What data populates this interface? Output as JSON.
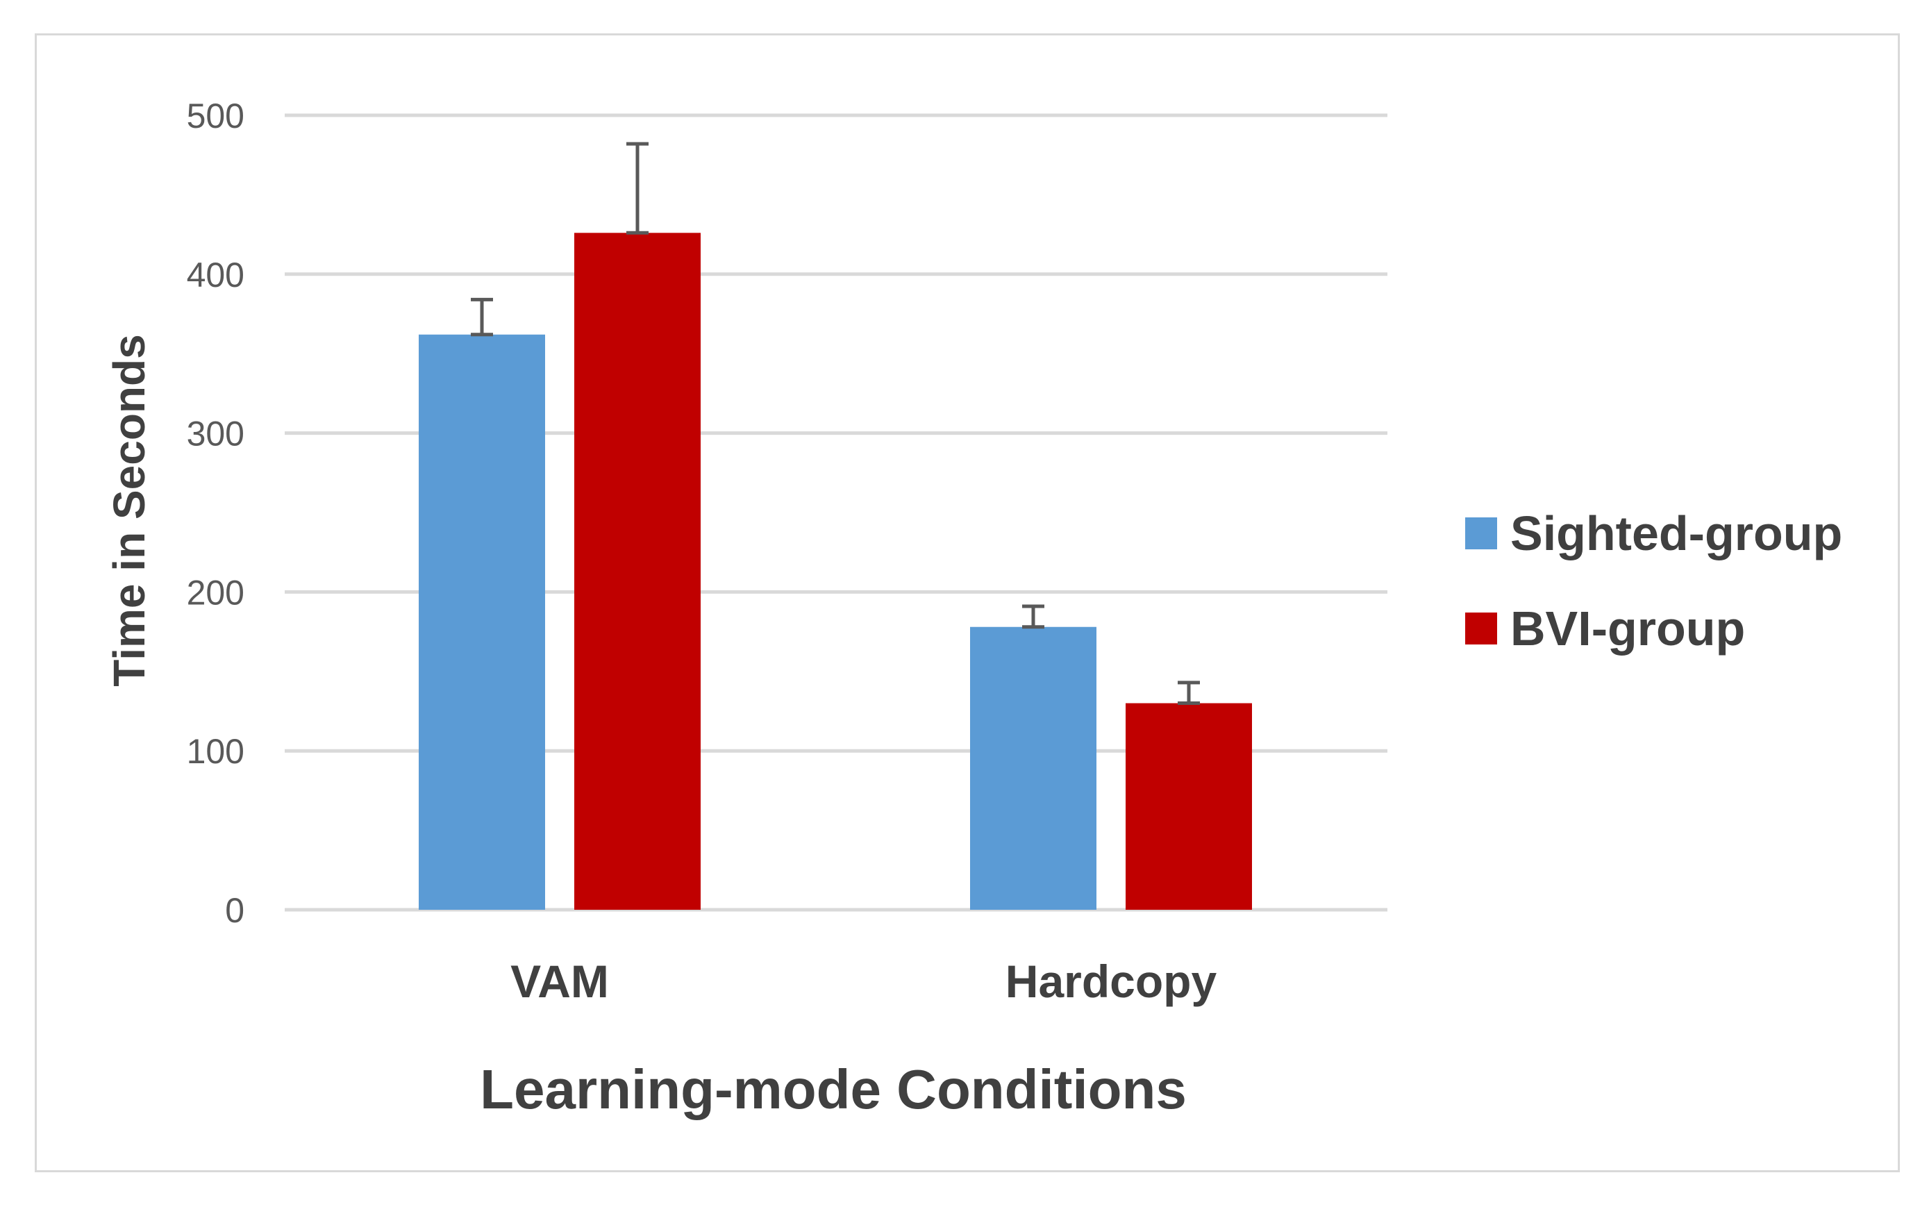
{
  "chart_data": {
    "type": "bar",
    "categories": [
      "VAM",
      "Hardcopy"
    ],
    "series": [
      {
        "name": "Sighted-group",
        "color": "#5b9bd5",
        "values": [
          362,
          178
        ],
        "errors": [
          22,
          13
        ]
      },
      {
        "name": "BVI-group",
        "color": "#c00000",
        "values": [
          426,
          130
        ],
        "errors": [
          56,
          13
        ]
      }
    ],
    "xlabel": "Learning-mode Conditions",
    "ylabel": "Time in Seconds",
    "ylim": [
      0,
      500
    ],
    "yticks": [
      0,
      100,
      200,
      300,
      400,
      500
    ],
    "ytick_labels": [
      "0",
      "100",
      "200",
      "300",
      "400",
      "500"
    ],
    "grid": true,
    "legend_position": "right",
    "gridline_color": "#d9d9d9",
    "error_bar_color": "#595959"
  }
}
